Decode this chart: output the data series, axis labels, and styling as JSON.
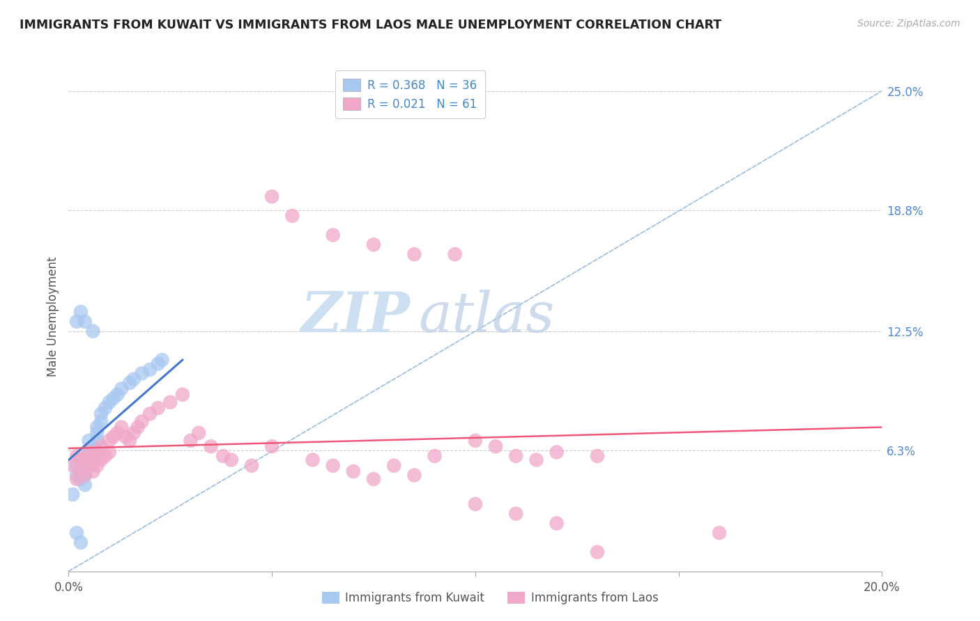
{
  "title": "IMMIGRANTS FROM KUWAIT VS IMMIGRANTS FROM LAOS MALE UNEMPLOYMENT CORRELATION CHART",
  "source": "Source: ZipAtlas.com",
  "ylabel": "Male Unemployment",
  "watermark_zip": "ZIP",
  "watermark_atlas": "atlas",
  "xlim": [
    0.0,
    0.2
  ],
  "ylim": [
    0.0,
    0.265
  ],
  "right_ytick_vals": [
    0.0,
    0.063,
    0.125,
    0.188,
    0.25
  ],
  "right_yticklabels": [
    "",
    "6.3%",
    "12.5%",
    "18.8%",
    "25.0%"
  ],
  "grid_color": "#cccccc",
  "background_color": "#ffffff",
  "kuwait_color": "#a8c8f0",
  "laos_color": "#f0a8c8",
  "kuwait_label": "Immigrants from Kuwait",
  "laos_label": "Immigrants from Laos",
  "kuwait_R": "0.368",
  "kuwait_N": "36",
  "laos_R": "0.021",
  "laos_N": "61",
  "legend_blue": "#4488cc",
  "legend_green": "#44aa44",
  "trendline_dashed_color": "#99bbdd",
  "kuwait_trend_color": "#4477cc",
  "laos_trend_color": "#ee5577",
  "kuwait_x": [
    0.001,
    0.002,
    0.002,
    0.003,
    0.003,
    0.003,
    0.004,
    0.004,
    0.004,
    0.005,
    0.005,
    0.005,
    0.006,
    0.006,
    0.007,
    0.007,
    0.007,
    0.008,
    0.008,
    0.009,
    0.01,
    0.011,
    0.012,
    0.013,
    0.015,
    0.016,
    0.018,
    0.02,
    0.022,
    0.023,
    0.002,
    0.003,
    0.004,
    0.006,
    0.002,
    0.003
  ],
  "kuwait_y": [
    0.04,
    0.05,
    0.055,
    0.048,
    0.052,
    0.058,
    0.045,
    0.05,
    0.055,
    0.058,
    0.062,
    0.068,
    0.06,
    0.065,
    0.068,
    0.072,
    0.075,
    0.078,
    0.082,
    0.085,
    0.088,
    0.09,
    0.092,
    0.095,
    0.098,
    0.1,
    0.103,
    0.105,
    0.108,
    0.11,
    0.13,
    0.135,
    0.13,
    0.125,
    0.02,
    0.015
  ],
  "laos_x": [
    0.001,
    0.002,
    0.002,
    0.003,
    0.003,
    0.004,
    0.004,
    0.005,
    0.005,
    0.006,
    0.006,
    0.007,
    0.007,
    0.008,
    0.008,
    0.009,
    0.01,
    0.01,
    0.011,
    0.012,
    0.013,
    0.014,
    0.015,
    0.016,
    0.017,
    0.018,
    0.02,
    0.022,
    0.025,
    0.028,
    0.03,
    0.032,
    0.035,
    0.038,
    0.04,
    0.045,
    0.05,
    0.06,
    0.065,
    0.07,
    0.075,
    0.08,
    0.085,
    0.09,
    0.1,
    0.105,
    0.11,
    0.115,
    0.12,
    0.13,
    0.05,
    0.055,
    0.065,
    0.075,
    0.085,
    0.095,
    0.1,
    0.11,
    0.12,
    0.13,
    0.16
  ],
  "laos_y": [
    0.055,
    0.048,
    0.06,
    0.052,
    0.058,
    0.05,
    0.058,
    0.055,
    0.062,
    0.052,
    0.06,
    0.055,
    0.062,
    0.058,
    0.065,
    0.06,
    0.068,
    0.062,
    0.07,
    0.072,
    0.075,
    0.07,
    0.068,
    0.072,
    0.075,
    0.078,
    0.082,
    0.085,
    0.088,
    0.092,
    0.068,
    0.072,
    0.065,
    0.06,
    0.058,
    0.055,
    0.065,
    0.058,
    0.055,
    0.052,
    0.048,
    0.055,
    0.05,
    0.06,
    0.068,
    0.065,
    0.06,
    0.058,
    0.062,
    0.06,
    0.195,
    0.185,
    0.175,
    0.17,
    0.165,
    0.165,
    0.035,
    0.03,
    0.025,
    0.01,
    0.02
  ],
  "kuwait_trend_x": [
    0.0,
    0.028
  ],
  "kuwait_trend_y": [
    0.058,
    0.11
  ],
  "laos_trend_x": [
    0.0,
    0.2
  ],
  "laos_trend_y": [
    0.064,
    0.075
  ]
}
